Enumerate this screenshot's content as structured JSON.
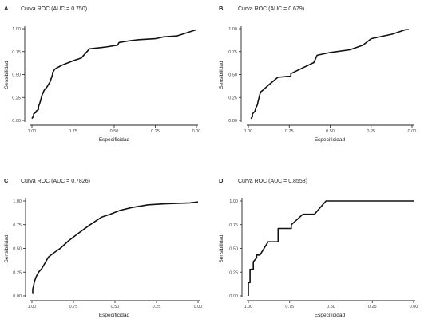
{
  "chart_data": [
    {
      "type": "line",
      "panel": "A",
      "title": "Curva ROC (AUC = 0.750)",
      "xlabel": "Especificidad",
      "ylabel": "Sensibilidad",
      "x_reversed": true,
      "xlim": [
        1.0,
        0.0
      ],
      "ylim": [
        0.0,
        1.0
      ],
      "xticks": [
        "1.00",
        "0.75",
        "0.50",
        "0.25",
        "0.00"
      ],
      "yticks": [
        "0.00",
        "0.25",
        "0.50",
        "0.75",
        "1.00"
      ],
      "series": [
        {
          "specificity": [
            1.0,
            0.99,
            0.99,
            0.975,
            0.975,
            0.96,
            0.96,
            0.95,
            0.94,
            0.93,
            0.925,
            0.91,
            0.89,
            0.875,
            0.875,
            0.86,
            0.82,
            0.75,
            0.7,
            0.65,
            0.55,
            0.48,
            0.47,
            0.4,
            0.35,
            0.25,
            0.2,
            0.12,
            0.0
          ],
          "sensitivity": [
            0.02,
            0.05,
            0.07,
            0.09,
            0.1,
            0.12,
            0.15,
            0.2,
            0.27,
            0.31,
            0.33,
            0.36,
            0.42,
            0.5,
            0.52,
            0.56,
            0.6,
            0.65,
            0.68,
            0.78,
            0.8,
            0.82,
            0.85,
            0.87,
            0.88,
            0.89,
            0.91,
            0.92,
            0.99
          ]
        }
      ]
    },
    {
      "type": "line",
      "panel": "B",
      "title": "Curva ROC (AUC = 0.679)",
      "xlabel": "Especificidad",
      "ylabel": "Sensibilidad",
      "x_reversed": true,
      "xlim": [
        1.0,
        0.0
      ],
      "ylim": [
        0.0,
        1.0
      ],
      "xticks": [
        "1.00",
        "0.75",
        "0.50",
        "0.25",
        "0.00"
      ],
      "yticks": [
        "0.00",
        "0.25",
        "0.50",
        "0.75",
        "1.00"
      ],
      "series": [
        {
          "specificity": [
            0.985,
            0.975,
            0.975,
            0.96,
            0.955,
            0.945,
            0.94,
            0.93,
            0.925,
            0.91,
            0.88,
            0.82,
            0.76,
            0.74,
            0.74,
            0.6,
            0.58,
            0.5,
            0.38,
            0.3,
            0.25,
            0.12,
            0.04,
            0.02
          ],
          "sensitivity": [
            0.02,
            0.04,
            0.07,
            0.1,
            0.13,
            0.17,
            0.21,
            0.28,
            0.31,
            0.33,
            0.38,
            0.47,
            0.48,
            0.48,
            0.51,
            0.63,
            0.71,
            0.74,
            0.77,
            0.82,
            0.89,
            0.94,
            0.99,
            0.99
          ]
        }
      ]
    },
    {
      "type": "line",
      "panel": "C",
      "title": "Curva ROC (AUC = 0.7826)",
      "xlabel": "Especificidad",
      "ylabel": "Sensibilidad",
      "x_reversed": true,
      "xlim": [
        1.0,
        0.0
      ],
      "ylim": [
        0.0,
        1.0
      ],
      "xticks": [
        "1.00",
        "0.75",
        "0.50",
        "0.25",
        "0.00"
      ],
      "yticks": [
        "0.00",
        "0.25",
        "0.50",
        "0.75",
        "1.00"
      ],
      "series": [
        {
          "specificity": [
            0.995,
            0.995,
            0.99,
            0.985,
            0.975,
            0.96,
            0.94,
            0.92,
            0.9,
            0.87,
            0.83,
            0.78,
            0.72,
            0.65,
            0.58,
            0.53,
            0.47,
            0.4,
            0.3,
            0.2,
            0.05,
            0.0
          ],
          "sensitivity": [
            0.02,
            0.07,
            0.11,
            0.15,
            0.2,
            0.25,
            0.29,
            0.35,
            0.41,
            0.45,
            0.5,
            0.58,
            0.66,
            0.75,
            0.83,
            0.86,
            0.9,
            0.93,
            0.96,
            0.97,
            0.98,
            0.99
          ]
        }
      ]
    },
    {
      "type": "line",
      "panel": "D",
      "title": "Curva ROC (AUC = 0.8558)",
      "xlabel": "Especificidad",
      "ylabel": "Sensibilidad",
      "x_reversed": true,
      "xlim": [
        1.0,
        0.0
      ],
      "ylim": [
        0.0,
        1.0
      ],
      "xticks": [
        "1.00",
        "0.75",
        "0.50",
        "0.25",
        "0.00"
      ],
      "yticks": [
        "0.00",
        "0.25",
        "0.50",
        "0.75",
        "1.00"
      ],
      "series": [
        {
          "specificity": [
            1.0,
            1.0,
            0.99,
            0.99,
            0.97,
            0.97,
            0.95,
            0.95,
            0.93,
            0.88,
            0.82,
            0.82,
            0.74,
            0.74,
            0.67,
            0.6,
            0.58,
            0.53,
            0.0
          ],
          "sensitivity": [
            0.0,
            0.14,
            0.14,
            0.28,
            0.28,
            0.36,
            0.4,
            0.43,
            0.43,
            0.57,
            0.57,
            0.71,
            0.71,
            0.75,
            0.86,
            0.86,
            0.9,
            1.0,
            1.0
          ]
        }
      ]
    }
  ]
}
